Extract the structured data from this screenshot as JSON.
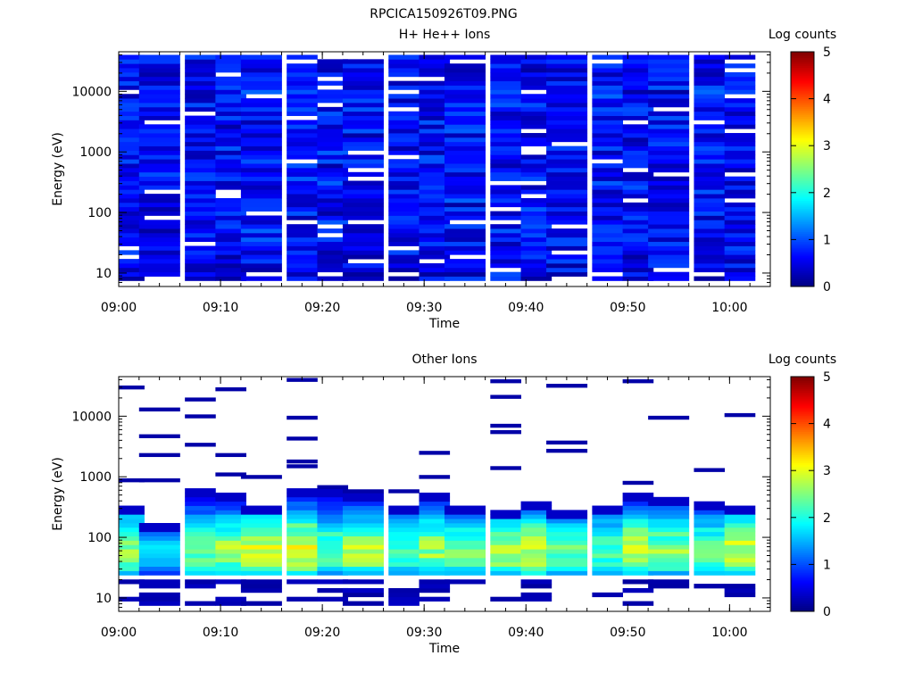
{
  "figure_title": "RPCICA150926T09.PNG",
  "chart_data": [
    {
      "type": "heatmap",
      "title": "H+ He++ Ions",
      "xlabel": "Time",
      "ylabel": "Energy (eV)",
      "colorbar_label": "Log counts",
      "x_ticks": [
        "09:00",
        "09:10",
        "09:20",
        "09:30",
        "09:40",
        "09:50",
        "10:00"
      ],
      "x_range": [
        "09:00",
        "10:04"
      ],
      "y_scale": "log",
      "y_range": [
        6,
        45000
      ],
      "y_ticks": [
        "10",
        "100",
        "1000",
        "10000"
      ],
      "c_range": [
        0,
        5
      ],
      "c_ticks": [
        "0",
        "1",
        "2",
        "3",
        "4",
        "5"
      ],
      "time_bins": [
        "09:01",
        "09:04",
        "09:08",
        "09:11",
        "09:14",
        "09:18",
        "09:21",
        "09:24",
        "09:28",
        "09:31",
        "09:34",
        "09:38",
        "09:41",
        "09:44",
        "09:48",
        "09:51",
        "09:54",
        "09:58",
        "10:01"
      ],
      "energy_profile": "broad low counts (log 0–1) across 20–40000 eV in every time bin, with scattered empty energy channels",
      "empty_low_energy_cells": [
        [
          1,
          0
        ],
        [
          4,
          1
        ],
        [
          6,
          1
        ],
        [
          8,
          1
        ],
        [
          11,
          2
        ],
        [
          13,
          0
        ],
        [
          14,
          1
        ],
        [
          16,
          2
        ],
        [
          17,
          1
        ]
      ]
    },
    {
      "type": "heatmap",
      "title": "Other Ions",
      "xlabel": "Time",
      "ylabel": "Energy (eV)",
      "colorbar_label": "Log counts",
      "x_ticks": [
        "09:00",
        "09:10",
        "09:20",
        "09:30",
        "09:40",
        "09:50",
        "10:00"
      ],
      "x_range": [
        "09:00",
        "10:04"
      ],
      "y_scale": "log",
      "y_range": [
        6,
        45000
      ],
      "y_ticks": [
        "10",
        "100",
        "1000",
        "10000"
      ],
      "c_range": [
        0,
        5
      ],
      "c_ticks": [
        "0",
        "1",
        "2",
        "3",
        "4",
        "5"
      ],
      "time_bins": [
        "09:01",
        "09:04",
        "09:08",
        "09:11",
        "09:14",
        "09:18",
        "09:21",
        "09:24",
        "09:28",
        "09:31",
        "09:34",
        "09:38",
        "09:41",
        "09:44",
        "09:48",
        "09:51",
        "09:54",
        "09:58",
        "10:01"
      ],
      "core_band_energy_eV": [
        22,
        400
      ],
      "core_peak_log_counts_by_bin": [
        2.6,
        1.6,
        2.4,
        2.6,
        2.9,
        3.1,
        2.4,
        2.7,
        2.3,
        2.6,
        2.4,
        2.7,
        2.9,
        2.4,
        2.2,
        2.9,
        2.5,
        2.3,
        2.8
      ],
      "core_top_eV_by_bin": [
        330,
        170,
        700,
        600,
        330,
        650,
        650,
        550,
        330,
        600,
        330,
        300,
        400,
        300,
        330,
        600,
        450,
        400,
        330
      ],
      "sparse_high_energy_hits_eV": [
        [
          30000,
          880
        ],
        [
          13000,
          4700,
          2300,
          880
        ],
        [
          19000,
          10000,
          3400
        ],
        [
          28000,
          2300,
          1100
        ],
        [
          1000
        ],
        [
          40000,
          9500,
          4300,
          1800,
          1500
        ],
        [
          680
        ],
        [
          580
        ],
        [
          580
        ],
        [
          2500,
          1000
        ],
        [],
        [
          38000,
          21000,
          7000,
          5500,
          1400
        ],
        [],
        [
          32000,
          3700,
          2700
        ],
        [],
        [
          38000,
          800
        ],
        [
          9500
        ],
        [
          1300
        ],
        [
          10500
        ]
      ]
    }
  ]
}
